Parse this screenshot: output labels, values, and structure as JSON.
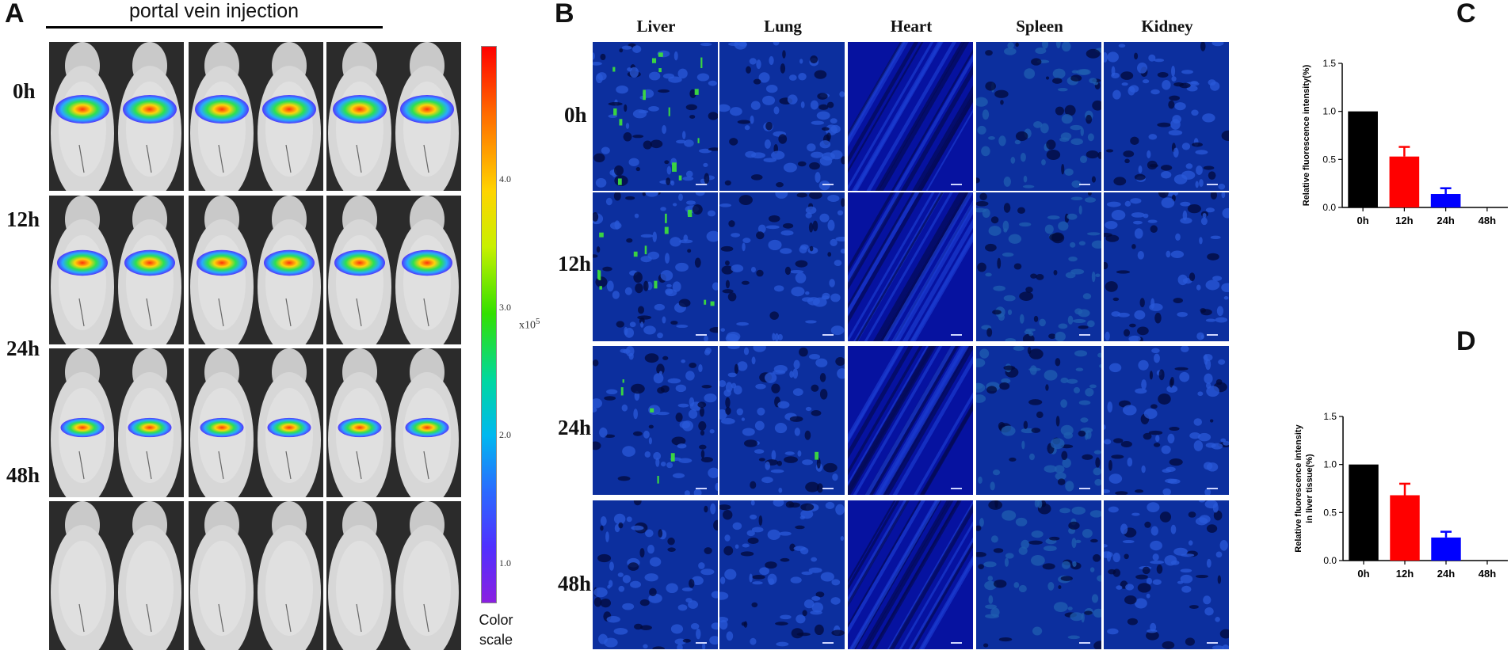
{
  "panel_a": {
    "letter": "A",
    "header": "portal vein injection",
    "row_labels": [
      "0h",
      "12h",
      "24h",
      "48h"
    ],
    "colorbar": {
      "ticks": [
        "4.0",
        "3.0",
        "2.0",
        "1.0"
      ],
      "tick_values": [
        4.0,
        3.0,
        2.0,
        1.0
      ],
      "range": [
        0.7,
        5.05
      ],
      "unit": "x10",
      "unit_exp": "5",
      "caption_line1": "Color",
      "caption_line2": "scale"
    },
    "signal_levels": [
      1.0,
      0.8,
      0.35,
      0.0
    ]
  },
  "panel_b": {
    "letter": "B",
    "columns": [
      "Liver",
      "Lung",
      "Heart",
      "Spleen",
      "Kidney"
    ],
    "row_labels": [
      "0h",
      "12h",
      "24h",
      "48h"
    ]
  },
  "colors": {
    "bar_0h": "#000000",
    "bar_12h": "#ff0000",
    "bar_24h": "#0000ff",
    "tissue_blue": "#0a2a9e",
    "tissue_green": "#3ddc3d"
  },
  "chart_data": [
    {
      "id": "C",
      "letter": "C",
      "type": "bar",
      "categories": [
        "0h",
        "12h",
        "24h",
        "48h"
      ],
      "values": [
        1.0,
        0.53,
        0.14,
        0.0
      ],
      "errors": [
        0.0,
        0.1,
        0.06,
        0.0
      ],
      "ylabel": "Relative fluorescence intensity(%)",
      "ylabel_line2": "",
      "ylim": [
        0,
        1.5
      ],
      "yticks": [
        "0.0",
        "0.5",
        "1.0",
        "1.5"
      ],
      "ytick_values": [
        0.0,
        0.5,
        1.0,
        1.5
      ],
      "xlabel": "",
      "grid": false
    },
    {
      "id": "D",
      "letter": "D",
      "type": "bar",
      "categories": [
        "0h",
        "12h",
        "24h",
        "48h"
      ],
      "values": [
        1.0,
        0.68,
        0.24,
        0.0
      ],
      "errors": [
        0.0,
        0.12,
        0.06,
        0.0
      ],
      "ylabel": "Relative fluorescence intensity",
      "ylabel_line2": "in liver tissue(%)",
      "ylim": [
        0,
        1.5
      ],
      "yticks": [
        "0.0",
        "0.5",
        "1.0",
        "1.5"
      ],
      "ytick_values": [
        0.0,
        0.5,
        1.0,
        1.5
      ],
      "xlabel": "",
      "grid": false
    }
  ]
}
